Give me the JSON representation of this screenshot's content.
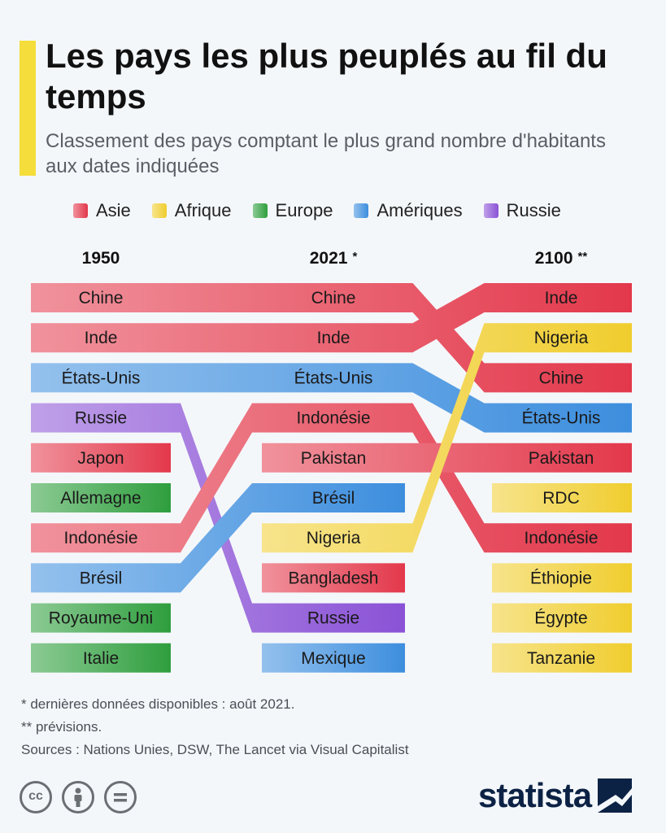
{
  "header": {
    "title": "Les pays les plus peuplés au fil du temps",
    "subtitle": "Classement des pays comptant le plus grand nombre d'habitants aux dates indiquées"
  },
  "colors": {
    "Asie": "#e3384b",
    "Afrique": "#f0cd2e",
    "Europe": "#2e9e3d",
    "Amériques": "#3d8ede",
    "Russie": "#8a52d6"
  },
  "chart_data": {
    "type": "table",
    "legend": [
      {
        "name": "Asie",
        "key": "Asie"
      },
      {
        "name": "Afrique",
        "key": "Afrique"
      },
      {
        "name": "Europe",
        "key": "Europe"
      },
      {
        "name": "Amériques",
        "key": "Amériques"
      },
      {
        "name": "Russie",
        "key": "Russie"
      }
    ],
    "columns": [
      {
        "year": "1950",
        "mark": ""
      },
      {
        "year": "2021",
        "mark": "*"
      },
      {
        "year": "2100",
        "mark": "**"
      }
    ],
    "rankings": [
      {
        "country": "Chine",
        "region": "Asie",
        "ranks": [
          1,
          1,
          3
        ]
      },
      {
        "country": "Inde",
        "region": "Asie",
        "ranks": [
          2,
          2,
          1
        ]
      },
      {
        "country": "États-Unis",
        "region": "Amériques",
        "ranks": [
          3,
          3,
          4
        ]
      },
      {
        "country": "Russie",
        "region": "Russie",
        "ranks": [
          4,
          9,
          null
        ]
      },
      {
        "country": "Japon",
        "region": "Asie",
        "ranks": [
          5,
          null,
          null
        ]
      },
      {
        "country": "Allemagne",
        "region": "Europe",
        "ranks": [
          6,
          null,
          null
        ]
      },
      {
        "country": "Indonésie",
        "region": "Asie",
        "ranks": [
          7,
          4,
          7
        ]
      },
      {
        "country": "Brésil",
        "region": "Amériques",
        "ranks": [
          8,
          6,
          null
        ]
      },
      {
        "country": "Royaume-Uni",
        "region": "Europe",
        "ranks": [
          9,
          null,
          null
        ]
      },
      {
        "country": "Italie",
        "region": "Europe",
        "ranks": [
          10,
          null,
          null
        ]
      },
      {
        "country": "Pakistan",
        "region": "Asie",
        "ranks": [
          null,
          5,
          5
        ]
      },
      {
        "country": "Nigeria",
        "region": "Afrique",
        "ranks": [
          null,
          7,
          2
        ]
      },
      {
        "country": "Bangladesh",
        "region": "Asie",
        "ranks": [
          null,
          8,
          null
        ]
      },
      {
        "country": "Mexique",
        "region": "Amériques",
        "ranks": [
          null,
          10,
          null
        ]
      },
      {
        "country": "RDC",
        "region": "Afrique",
        "ranks": [
          null,
          null,
          6
        ]
      },
      {
        "country": "Éthiopie",
        "region": "Afrique",
        "ranks": [
          null,
          null,
          8
        ]
      },
      {
        "country": "Égypte",
        "region": "Afrique",
        "ranks": [
          null,
          null,
          9
        ]
      },
      {
        "country": "Tanzanie",
        "region": "Afrique",
        "ranks": [
          null,
          null,
          10
        ]
      }
    ]
  },
  "notes": {
    "note1": "*   dernières données disponibles : août 2021.",
    "note2": "** prévisions.",
    "sources": "Sources : Nations Unies, DSW, The Lancet via Visual Capitalist"
  },
  "footer": {
    "cc_label": "cc",
    "brand": "statista"
  }
}
